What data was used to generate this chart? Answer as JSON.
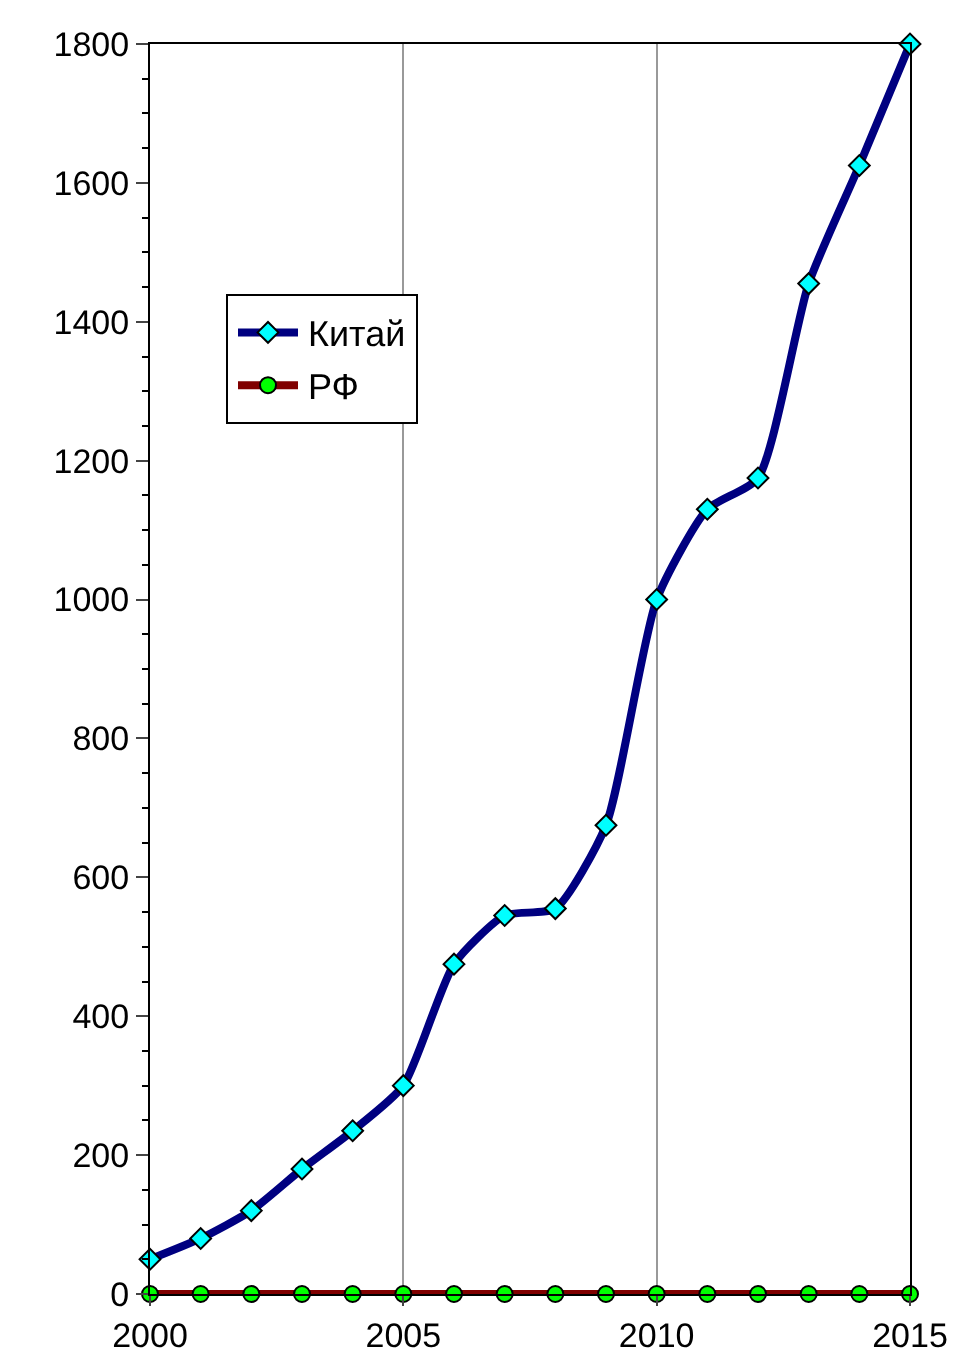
{
  "chart_data": {
    "type": "line",
    "x": [
      2000,
      2001,
      2002,
      2003,
      2004,
      2005,
      2006,
      2007,
      2008,
      2009,
      2010,
      2011,
      2012,
      2013,
      2014,
      2015
    ],
    "series": [
      {
        "name": "Китай",
        "color": "#000080",
        "marker": "diamond",
        "values": [
          50,
          80,
          120,
          180,
          235,
          300,
          475,
          545,
          555,
          675,
          1000,
          1130,
          1175,
          1455,
          1625,
          1800
        ]
      },
      {
        "name": "РФ",
        "color": "#800000",
        "marker": "circle",
        "values": [
          0,
          0,
          0,
          0,
          0,
          0,
          0,
          0,
          0,
          0,
          0,
          0,
          0,
          0,
          0,
          0
        ]
      }
    ],
    "xlim": [
      2000,
      2015
    ],
    "xticks": [
      2000,
      2005,
      2010,
      2015
    ],
    "ylim": [
      0,
      1800
    ],
    "yticks": [
      0,
      200,
      400,
      600,
      800,
      1000,
      1200,
      1400,
      1600,
      1800
    ],
    "grid": "x",
    "legend": "top left"
  }
}
